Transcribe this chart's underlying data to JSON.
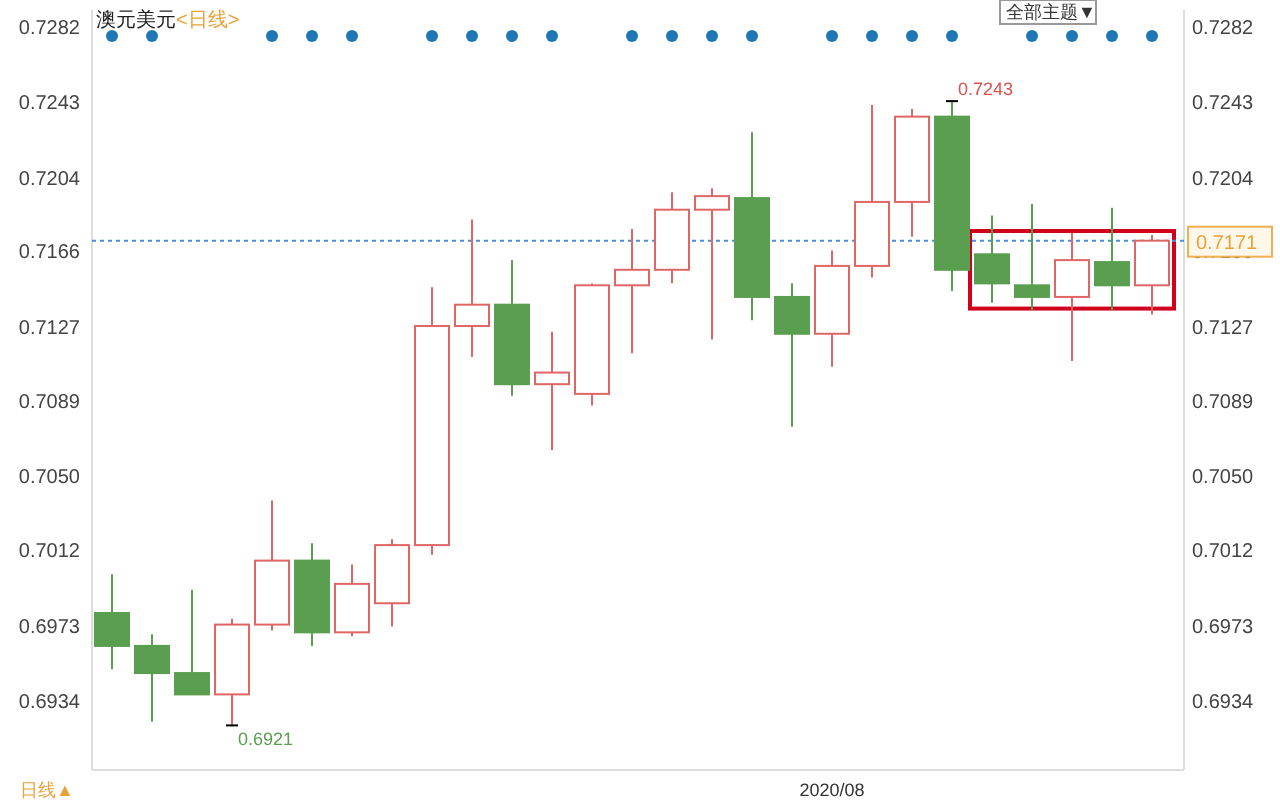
{
  "chart_data": {
    "type": "candlestick",
    "title": "澳元美元",
    "subtitle": "<日线>",
    "categories": [
      null,
      null,
      null,
      null,
      null,
      null,
      null,
      null,
      null,
      null,
      null,
      null,
      null,
      null,
      null,
      null,
      null,
      null,
      "2020/08",
      null,
      null,
      null,
      null,
      null,
      null,
      null,
      null
    ],
    "ohlc": [
      [
        0.6979,
        0.6999,
        0.695,
        0.6962
      ],
      [
        0.6962,
        0.6968,
        0.6923,
        0.6948
      ],
      [
        0.6948,
        0.6991,
        0.6937,
        0.6937
      ],
      [
        0.6937,
        0.6976,
        0.6921,
        0.6973
      ],
      [
        0.6973,
        0.7037,
        0.697,
        0.7006
      ],
      [
        0.7006,
        0.7015,
        0.6962,
        0.6969
      ],
      [
        0.6969,
        0.7004,
        0.6967,
        0.6994
      ],
      [
        0.6984,
        0.7017,
        0.6972,
        0.7014
      ],
      [
        0.7014,
        0.7147,
        0.7009,
        0.7127
      ],
      [
        0.7127,
        0.7182,
        0.7111,
        0.7138
      ],
      [
        0.7138,
        0.7161,
        0.7091,
        0.7097
      ],
      [
        0.7097,
        0.7124,
        0.7063,
        0.7103
      ],
      [
        0.7092,
        0.7149,
        0.7086,
        0.7148
      ],
      [
        0.7148,
        0.7177,
        0.7113,
        0.7156
      ],
      [
        0.7156,
        0.7196,
        0.7149,
        0.7187
      ],
      [
        0.7187,
        0.7198,
        0.712,
        0.7194
      ],
      [
        0.7193,
        0.7227,
        0.713,
        0.7142
      ],
      [
        0.7142,
        0.7149,
        0.7075,
        0.7123
      ],
      [
        0.7123,
        0.7166,
        0.7106,
        0.7158
      ],
      [
        0.7158,
        0.7241,
        0.7152,
        0.7191
      ],
      [
        0.7191,
        0.7239,
        0.7173,
        0.7235
      ],
      [
        0.7235,
        0.7243,
        0.7145,
        0.7156
      ],
      [
        0.7164,
        0.7184,
        0.7139,
        0.7149
      ],
      [
        0.7148,
        0.719,
        0.7135,
        0.7142
      ],
      [
        0.7142,
        0.7175,
        0.7109,
        0.7161
      ],
      [
        0.716,
        0.7188,
        0.7135,
        0.7148
      ],
      [
        0.7148,
        0.7174,
        0.7133,
        0.7171
      ]
    ],
    "colors": [
      "#5a9e4f",
      "#5a9e4f",
      "#5a9e4f",
      "#e06666",
      "#e06666",
      "#5a9e4f",
      "#e06666",
      "#e06666",
      "#e06666",
      "#e06666",
      "#5a9e4f",
      "#e06666",
      "#e06666",
      "#e06666",
      "#e06666",
      "#e06666",
      "#5a9e4f",
      "#5a9e4f",
      "#e06666",
      "#e06666",
      "#e06666",
      "#5a9e4f",
      "#5a9e4f",
      "#5a9e4f",
      "#e06666",
      "#5a9e4f",
      "#e06666"
    ],
    "ylim": [
      0.6898,
      0.729
    ],
    "yticks": [
      0.6934,
      0.6973,
      0.7012,
      {
        "value": 0.705,
        "label": "0.7050"
      },
      0.7089,
      0.7127,
      0.7166,
      0.7204,
      0.7243,
      0.7282
    ],
    "y2lim": [
      0.6898,
      0.729
    ],
    "y2ticks": [
      0.6934,
      0.6973,
      0.7012,
      {
        "value": 0.705,
        "label": "0.7050"
      },
      0.7089,
      0.7127,
      0.7166,
      0.7204,
      0.7243,
      0.7282
    ],
    "ref_lines": [
      {
        "axis": "y2",
        "value": 0.7171,
        "label": "0.7171",
        "color": "#4a90d9",
        "line_style": "dotted"
      }
    ],
    "annotations": [
      "0.7243",
      "0.6921",
      "全部主题▼",
      "日线▲"
    ]
  }
}
